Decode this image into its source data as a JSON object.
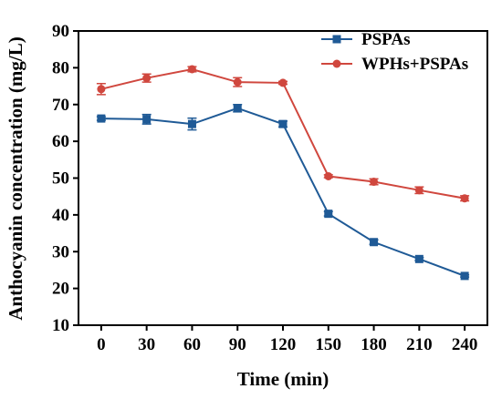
{
  "chart_data": {
    "type": "line",
    "title": "",
    "xlabel": "Time (min)",
    "ylabel": "Anthocyanin concentration (mg/L)",
    "x": [
      0,
      30,
      60,
      90,
      120,
      150,
      180,
      210,
      240
    ],
    "xticks": [
      "0",
      "30",
      "60",
      "90",
      "120",
      "150",
      "180",
      "210",
      "240"
    ],
    "xlim": [
      -15,
      255
    ],
    "ylim": [
      10,
      90
    ],
    "yticks": [
      "10",
      "20",
      "30",
      "40",
      "50",
      "60",
      "70",
      "80",
      "90"
    ],
    "grid": false,
    "legend_position": "top-right",
    "series": [
      {
        "name": "PSPAs",
        "color": "#1f5a96",
        "marker": "square",
        "values": [
          66.2,
          66.0,
          64.7,
          69.0,
          64.7,
          40.3,
          32.6,
          28.0,
          23.4
        ],
        "errors": [
          0.5,
          1.3,
          1.6,
          1.0,
          0.8,
          0.6,
          0.6,
          0.4,
          0.3
        ]
      },
      {
        "name": "WPHs+PSPAs",
        "color": "#d0473e",
        "marker": "circle",
        "values": [
          74.2,
          77.2,
          79.6,
          76.1,
          75.9,
          50.5,
          49.0,
          46.7,
          44.5
        ],
        "errors": [
          1.5,
          1.1,
          0.7,
          1.2,
          0.4,
          0.4,
          0.8,
          0.9,
          0.7
        ]
      }
    ]
  }
}
